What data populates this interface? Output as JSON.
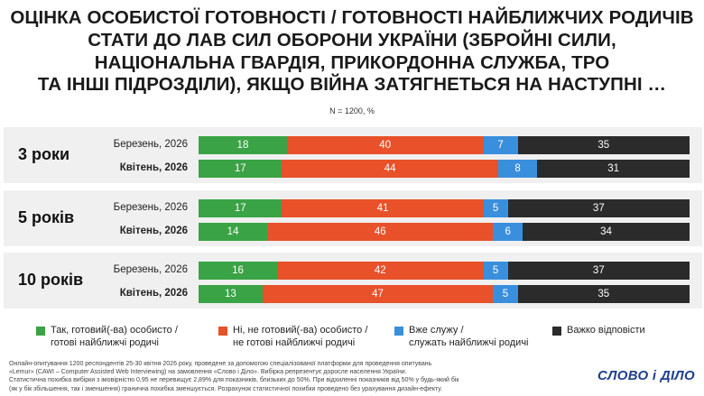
{
  "title_lines": [
    "ОЦІНКА ОСОБИСТОЇ ГОТОВНОСТІ / ГОТОВНОСТІ НАЙБЛИЖЧИХ РОДИЧІВ",
    "СТАТИ ДО ЛАВ СИЛ ОБОРОНИ УКРАЇНИ (ЗБРОЙНІ СИЛИ,",
    "НАЦІОНАЛЬНА ГВАРДІЯ, ПРИКОРДОННА СЛУЖБА, ТРО",
    "ТА ІНШІ ПІДРОЗДІЛИ), ЯКЩО ВІЙНА ЗАТЯГНЕТЬСЯ НА НАСТУПНІ …"
  ],
  "subtitle": "N = 1200, %",
  "colors": {
    "green": "#3aa345",
    "red": "#e8512a",
    "blue": "#3a8fdd",
    "dark": "#2b2b2b"
  },
  "chart_data": {
    "type": "bar",
    "orientation": "horizontal",
    "stacked": true,
    "xlim": [
      0,
      100
    ],
    "series_labels": [
      "Так, готовий(-ва) особисто / готові найближчі родичі",
      "Ні, не готовий(-ва) особисто / не готові найближчі родичі",
      "Вже служу / служать найближчі родичі",
      "Важко відповісти"
    ],
    "groups": [
      {
        "name": "3 роки",
        "rows": [
          {
            "label": "Березень, 2026",
            "bold": false,
            "values": [
              18,
              40,
              7,
              35
            ]
          },
          {
            "label": "Квітень, 2026",
            "bold": true,
            "values": [
              17,
              44,
              8,
              31
            ]
          }
        ]
      },
      {
        "name": "5 років",
        "rows": [
          {
            "label": "Березень, 2026",
            "bold": false,
            "values": [
              17,
              41,
              5,
              37
            ]
          },
          {
            "label": "Квітень, 2026",
            "bold": true,
            "values": [
              14,
              46,
              6,
              34
            ]
          }
        ]
      },
      {
        "name": "10 років",
        "rows": [
          {
            "label": "Березень, 2026",
            "bold": false,
            "values": [
              16,
              42,
              5,
              37
            ]
          },
          {
            "label": "Квітень, 2026",
            "bold": true,
            "values": [
              13,
              47,
              5,
              35
            ]
          }
        ]
      }
    ]
  },
  "legend": [
    {
      "line1": "Так, готовий(-ва) особисто /",
      "line2": "готові найближчі родичі",
      "color": "#3aa345"
    },
    {
      "line1": "Ні, не готовий(-ва) особисто /",
      "line2": "не готові найближчі родичі",
      "color": "#e8512a"
    },
    {
      "line1": "Вже служу /",
      "line2": "служать найближчі родичі",
      "color": "#3a8fdd"
    },
    {
      "line1": "Важко відповісти",
      "line2": "",
      "color": "#2b2b2b"
    }
  ],
  "footer_lines": [
    "Онлайн-опитування 1200 респондентів 25-30 квітня 2026 року, проведене за допомогою спеціалізованої платформи для проведення опитувань",
    "«Lemur» (CAWI – Computer Assisted Web Interviewing) на замовлення «Слово і Діло». Вибірка репрезентує доросле населення України.",
    "Статистична похибка вибірки з імовірністю 0,95 не перевищує 2,89% для показників, близьких до 50%. При відхиленні показників від 50% у будь-який бік",
    "(як у бік збільшення, так і зменшення) гранична похибка зменшується. Розрахунок статистичної похибки проведено без урахування дизайн-ефекту."
  ],
  "logo": "СЛОВО і ДІЛО"
}
